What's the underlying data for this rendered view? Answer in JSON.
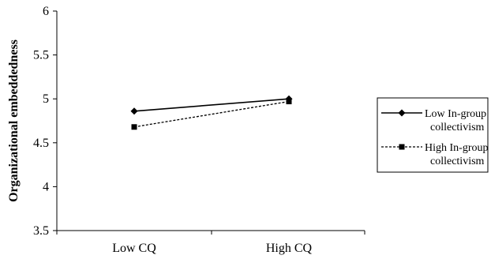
{
  "chart_data": {
    "type": "line",
    "title": "",
    "xlabel": "",
    "ylabel": "Organizational embeddedness",
    "categories": [
      "Low CQ",
      "High CQ"
    ],
    "ylim": [
      3.5,
      6
    ],
    "yticks": [
      "3.5",
      "4",
      "4.5",
      "5",
      "5.5",
      "6"
    ],
    "grid": false,
    "legend_position": "right",
    "series": [
      {
        "name_lines": [
          "Low In-group",
          "collectivism"
        ],
        "values": [
          4.86,
          5.0
        ],
        "line_style": "solid",
        "marker": "diamond",
        "color": "#000000"
      },
      {
        "name_lines": [
          "High In-group",
          "collectivism"
        ],
        "values": [
          4.68,
          4.97
        ],
        "line_style": "dashed",
        "marker": "square",
        "color": "#000000"
      }
    ]
  }
}
